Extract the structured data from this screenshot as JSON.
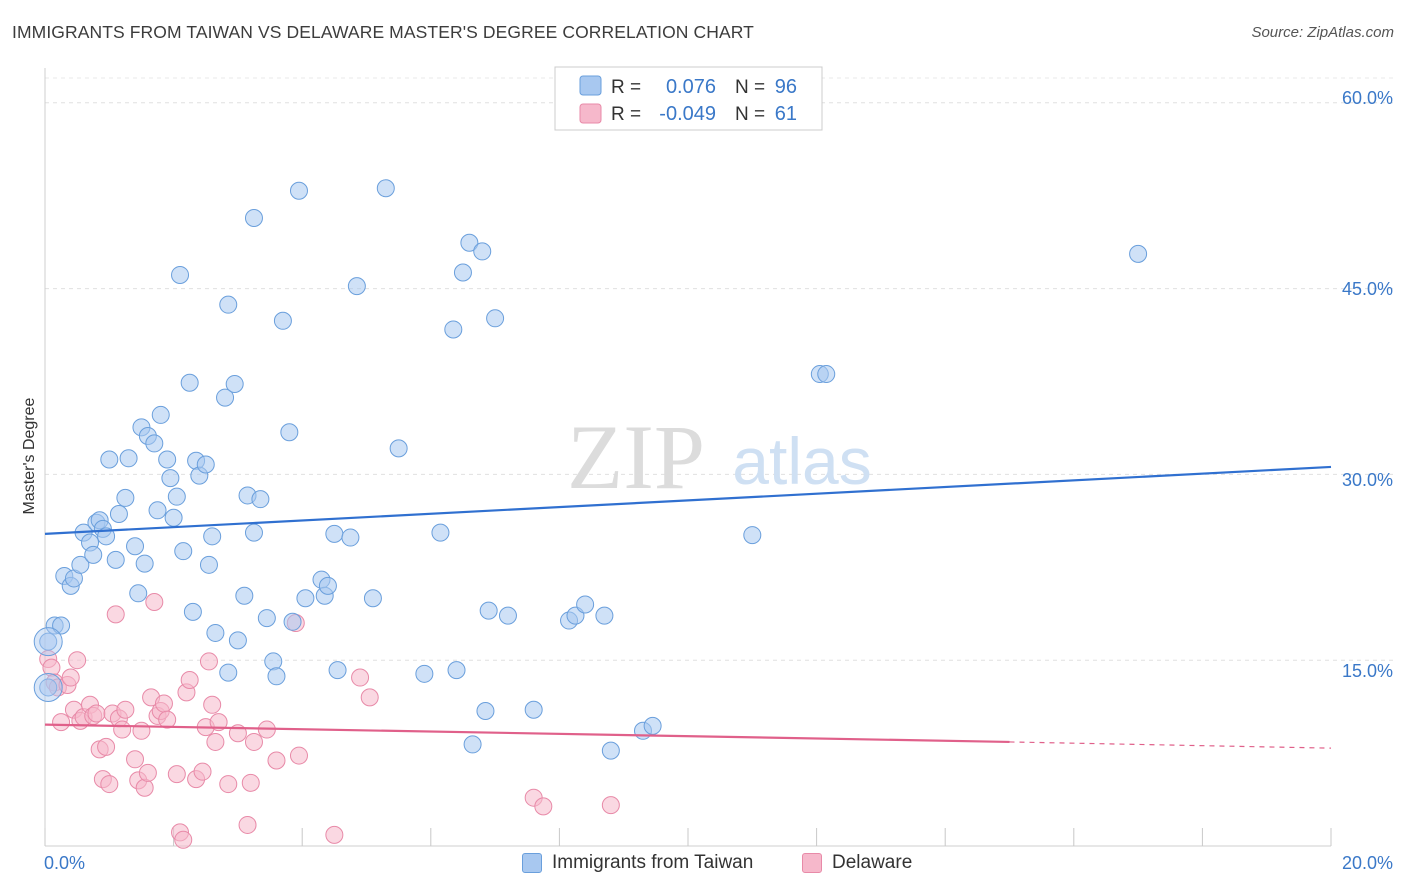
{
  "header": {
    "title": "IMMIGRANTS FROM TAIWAN VS DELAWARE MASTER'S DEGREE CORRELATION CHART",
    "source": "Source: ZipAtlas.com"
  },
  "watermark": {
    "zip": "ZIP",
    "atlas": "atlas"
  },
  "legend": {
    "r_label": "R =",
    "n_label": "N =",
    "rows": [
      {
        "r": "0.076",
        "n": "96",
        "color": "#a8c8f0"
      },
      {
        "r": "-0.049",
        "n": "61",
        "color": "#f6b8cb"
      }
    ]
  },
  "colors": {
    "blue_fill": "#a8c8f0",
    "blue_stroke": "#6a9fdc",
    "blue_line": "#3070d0",
    "pink_fill": "#f6b8cb",
    "pink_stroke": "#e88aa8",
    "pink_line": "#e0608a",
    "axis_text": "#3a78c8"
  },
  "chart_data": {
    "type": "scatter",
    "title": "IMMIGRANTS FROM TAIWAN VS DELAWARE MASTER'S DEGREE CORRELATION CHART",
    "xlabel": "",
    "ylabel": "Master's Degree",
    "xlim": [
      0,
      20
    ],
    "ylim": [
      0,
      62
    ],
    "x_tick_labels": [
      "0.0%",
      "20.0%"
    ],
    "y_ticks": [
      15,
      30,
      45,
      60
    ],
    "y_tick_labels": [
      "15.0%",
      "30.0%",
      "45.0%",
      "60.0%"
    ],
    "grid": true,
    "legend_position": "top-center",
    "series": [
      {
        "name": "Immigrants from Taiwan",
        "r": 0.076,
        "n": 96,
        "trend": {
          "x": [
            0,
            20
          ],
          "y": [
            25.2,
            30.6
          ]
        },
        "points": [
          [
            0.05,
            16.5
          ],
          [
            0.05,
            12.8
          ],
          [
            0.15,
            17.8
          ],
          [
            0.25,
            17.8
          ],
          [
            0.3,
            21.8
          ],
          [
            0.4,
            21.0
          ],
          [
            0.45,
            21.6
          ],
          [
            0.55,
            22.7
          ],
          [
            0.6,
            25.3
          ],
          [
            0.7,
            24.5
          ],
          [
            0.75,
            23.5
          ],
          [
            0.8,
            26.1
          ],
          [
            0.85,
            26.3
          ],
          [
            0.9,
            25.6
          ],
          [
            0.95,
            25.0
          ],
          [
            1.0,
            31.2
          ],
          [
            1.1,
            23.1
          ],
          [
            1.15,
            26.8
          ],
          [
            1.25,
            28.1
          ],
          [
            1.3,
            31.3
          ],
          [
            1.4,
            24.2
          ],
          [
            1.45,
            20.4
          ],
          [
            1.5,
            33.8
          ],
          [
            1.55,
            22.8
          ],
          [
            1.6,
            33.1
          ],
          [
            1.7,
            32.5
          ],
          [
            1.75,
            27.1
          ],
          [
            1.8,
            34.8
          ],
          [
            1.9,
            31.2
          ],
          [
            1.95,
            29.7
          ],
          [
            2.0,
            26.5
          ],
          [
            2.05,
            28.2
          ],
          [
            2.1,
            46.1
          ],
          [
            2.15,
            23.8
          ],
          [
            2.25,
            37.4
          ],
          [
            2.3,
            18.9
          ],
          [
            2.35,
            31.1
          ],
          [
            2.4,
            29.9
          ],
          [
            2.5,
            30.8
          ],
          [
            2.55,
            22.7
          ],
          [
            2.6,
            25.0
          ],
          [
            2.65,
            17.2
          ],
          [
            2.8,
            36.2
          ],
          [
            2.85,
            43.7
          ],
          [
            2.85,
            14.0
          ],
          [
            2.95,
            37.3
          ],
          [
            3.0,
            16.6
          ],
          [
            3.1,
            20.2
          ],
          [
            3.15,
            28.3
          ],
          [
            3.25,
            25.3
          ],
          [
            3.25,
            50.7
          ],
          [
            3.35,
            28.0
          ],
          [
            3.45,
            18.4
          ],
          [
            3.55,
            14.9
          ],
          [
            3.6,
            13.7
          ],
          [
            3.7,
            42.4
          ],
          [
            3.8,
            33.4
          ],
          [
            3.85,
            18.1
          ],
          [
            3.95,
            52.9
          ],
          [
            4.05,
            20.0
          ],
          [
            4.3,
            21.5
          ],
          [
            4.35,
            20.2
          ],
          [
            4.4,
            21.0
          ],
          [
            4.5,
            25.2
          ],
          [
            4.55,
            14.2
          ],
          [
            4.75,
            24.9
          ],
          [
            4.85,
            45.2
          ],
          [
            5.1,
            20.0
          ],
          [
            5.5,
            32.1
          ],
          [
            5.9,
            13.9
          ],
          [
            6.15,
            25.3
          ],
          [
            6.35,
            41.7
          ],
          [
            6.4,
            14.2
          ],
          [
            6.5,
            46.3
          ],
          [
            6.6,
            48.7
          ],
          [
            6.65,
            8.2
          ],
          [
            6.8,
            48.0
          ],
          [
            6.85,
            10.9
          ],
          [
            6.9,
            19.0
          ],
          [
            7.0,
            42.6
          ],
          [
            7.2,
            18.6
          ],
          [
            7.6,
            11.0
          ],
          [
            8.15,
            18.2
          ],
          [
            8.25,
            18.6
          ],
          [
            8.4,
            19.5
          ],
          [
            8.7,
            18.6
          ],
          [
            8.8,
            7.7
          ],
          [
            9.3,
            9.3
          ],
          [
            9.45,
            9.7
          ],
          [
            11.0,
            25.1
          ],
          [
            12.05,
            38.1
          ],
          [
            12.15,
            38.1
          ],
          [
            17.0,
            47.8
          ],
          [
            3.1,
            0.0
          ],
          [
            4.9,
            0.0
          ],
          [
            5.3,
            53.1
          ]
        ]
      },
      {
        "name": "Delaware",
        "r": -0.049,
        "n": 61,
        "trend": {
          "x": [
            0,
            15.0
          ],
          "y": [
            9.8,
            8.4
          ]
        },
        "trend_dashed": {
          "x": [
            15.0,
            20
          ],
          "y": [
            8.4,
            7.9
          ]
        },
        "points": [
          [
            0.05,
            15.1
          ],
          [
            0.1,
            14.4
          ],
          [
            0.15,
            13.2
          ],
          [
            0.2,
            12.8
          ],
          [
            0.25,
            10.0
          ],
          [
            0.35,
            13.0
          ],
          [
            0.4,
            13.6
          ],
          [
            0.45,
            11.0
          ],
          [
            0.5,
            15.0
          ],
          [
            0.55,
            10.1
          ],
          [
            0.6,
            10.4
          ],
          [
            0.7,
            11.4
          ],
          [
            0.75,
            10.5
          ],
          [
            0.8,
            10.7
          ],
          [
            0.85,
            7.8
          ],
          [
            0.9,
            5.4
          ],
          [
            0.95,
            8.0
          ],
          [
            1.0,
            5.0
          ],
          [
            1.05,
            10.7
          ],
          [
            1.1,
            18.7
          ],
          [
            1.15,
            10.3
          ],
          [
            1.2,
            9.4
          ],
          [
            1.25,
            11.0
          ],
          [
            1.4,
            7.0
          ],
          [
            1.45,
            5.3
          ],
          [
            1.5,
            9.3
          ],
          [
            1.55,
            4.7
          ],
          [
            1.6,
            5.9
          ],
          [
            1.65,
            12.0
          ],
          [
            1.7,
            19.7
          ],
          [
            1.75,
            10.5
          ],
          [
            1.8,
            10.9
          ],
          [
            1.85,
            11.5
          ],
          [
            1.9,
            10.2
          ],
          [
            2.05,
            5.8
          ],
          [
            2.1,
            1.1
          ],
          [
            2.15,
            0.5
          ],
          [
            2.2,
            12.4
          ],
          [
            2.25,
            13.4
          ],
          [
            2.35,
            5.4
          ],
          [
            2.45,
            6.0
          ],
          [
            2.5,
            9.6
          ],
          [
            2.55,
            14.9
          ],
          [
            2.6,
            11.4
          ],
          [
            2.65,
            8.4
          ],
          [
            2.7,
            10.0
          ],
          [
            2.85,
            5.0
          ],
          [
            3.0,
            9.1
          ],
          [
            3.15,
            1.7
          ],
          [
            3.2,
            5.1
          ],
          [
            3.25,
            8.4
          ],
          [
            3.45,
            9.4
          ],
          [
            3.6,
            6.9
          ],
          [
            3.9,
            18.0
          ],
          [
            3.95,
            7.3
          ],
          [
            4.5,
            0.9
          ],
          [
            4.9,
            13.6
          ],
          [
            5.05,
            12.0
          ],
          [
            7.6,
            3.9
          ],
          [
            7.75,
            3.2
          ],
          [
            8.8,
            3.3
          ]
        ]
      }
    ]
  },
  "axis": {
    "x_min_label": "0.0%",
    "x_max_label": "20.0%",
    "y_title": "Master's Degree",
    "y_labels": [
      "60.0%",
      "45.0%",
      "30.0%",
      "15.0%"
    ]
  },
  "bottom_legend": {
    "items": [
      {
        "label": "Immigrants from Taiwan",
        "color": "#a8c8f0"
      },
      {
        "label": "Delaware",
        "color": "#f6b8cb"
      }
    ]
  }
}
